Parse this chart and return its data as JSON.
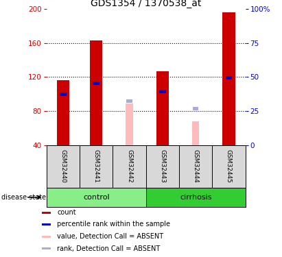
{
  "title": "GDS1354 / 1370538_at",
  "samples": [
    "GSM32440",
    "GSM32441",
    "GSM32442",
    "GSM32443",
    "GSM32444",
    "GSM32445"
  ],
  "ylim_left": [
    40,
    200
  ],
  "ylim_right": [
    0,
    100
  ],
  "yticks_left": [
    40,
    80,
    120,
    160,
    200
  ],
  "yticks_right": [
    0,
    25,
    50,
    75,
    100
  ],
  "red_bars": [
    116,
    163,
    null,
    127,
    null,
    196
  ],
  "blue_bars": [
    100,
    113,
    null,
    103,
    null,
    119
  ],
  "pink_bars": [
    null,
    null,
    89,
    null,
    68,
    null
  ],
  "lightblue_bars": [
    null,
    null,
    92,
    null,
    83,
    null
  ],
  "baseline": 40,
  "red_color": "#cc0000",
  "blue_color": "#0000cc",
  "pink_color": "#ffbbbb",
  "lightblue_color": "#aaaadd",
  "control_color": "#88ee88",
  "cirrhosis_color": "#33cc33",
  "left_axis_color": "#cc0000",
  "right_axis_color": "#0000cc",
  "title_fontsize": 10,
  "tick_fontsize": 7.5,
  "legend_fontsize": 7,
  "sample_label_fontsize": 6.5
}
